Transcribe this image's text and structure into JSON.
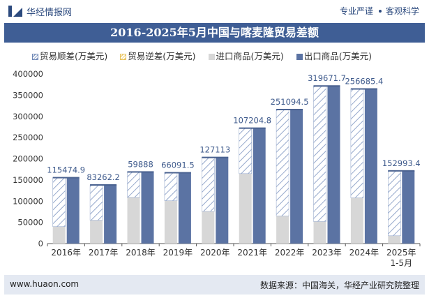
{
  "header": {
    "brand": "华经情报网",
    "tag1": "专业严谨",
    "tag2": "客观科学"
  },
  "title": "2016-2025年5月中国与喀麦隆贸易差额",
  "legend": {
    "surplus": "贸易顺差(万美元)",
    "deficit": "贸易逆差(万美元)",
    "import": "进口商品(万美元)",
    "export": "出口商品(万美元)"
  },
  "colors": {
    "surplus": "#6f88b6",
    "import": "#d7d7d7",
    "export": "#5b73a3",
    "title_bg": "#3f5e95"
  },
  "chart_data": {
    "type": "bar",
    "title": "2016-2025年5月中国与喀麦隆贸易差额",
    "categories": [
      "2016年",
      "2017年",
      "2018年",
      "2019年",
      "2020年",
      "2021年",
      "2022年",
      "2023年",
      "2024年",
      "2025年 1-5月"
    ],
    "ylim": [
      0,
      400000
    ],
    "yticks": [
      0,
      50000,
      100000,
      150000,
      200000,
      250000,
      300000,
      350000,
      400000
    ],
    "series": [
      {
        "name": "贸易顺差(万美元)",
        "values": [
          115474.9,
          83262.2,
          59888,
          66091.5,
          127113,
          107204.8,
          251094.5,
          319671.7,
          256685.4,
          152993.4
        ]
      },
      {
        "name": "贸易逆差(万美元)",
        "values": [
          0,
          0,
          0,
          0,
          0,
          0,
          0,
          0,
          0,
          0
        ]
      },
      {
        "name": "进口商品(万美元)",
        "values": [
          40000,
          55000,
          109000,
          101000,
          76000,
          165000,
          65000,
          52000,
          108000,
          18500
        ]
      },
      {
        "name": "出口商品(万美元)",
        "values": [
          155474.9,
          138262.2,
          168888,
          167091.5,
          203113,
          272204.8,
          316094.5,
          371671.7,
          364685.4,
          171493.4
        ]
      }
    ],
    "data_labels": [
      "115474.9",
      "83262.2",
      "59888",
      "66091.5",
      "127113",
      "107204.8",
      "251094.5",
      "319671.7",
      "256685.4",
      "152993.4"
    ]
  },
  "footer": {
    "site": "www.huaon.com",
    "source": "数据来源：中国海关，华经产业研究院整理"
  }
}
